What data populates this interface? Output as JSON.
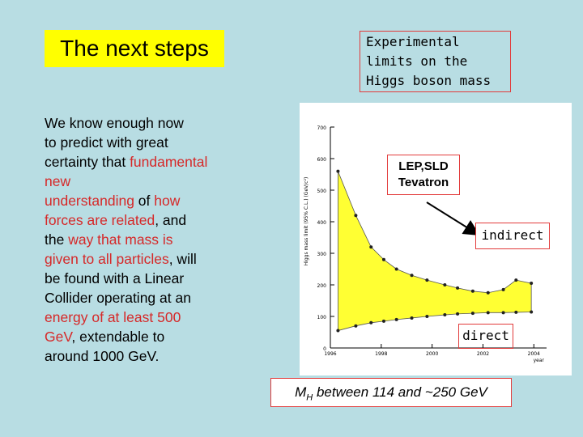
{
  "slide": {
    "title": "The next steps",
    "exp_title_lines": [
      "Experimental",
      "limits on the",
      "Higgs boson mass"
    ],
    "body_segments": [
      [
        {
          "t": "We know enough now",
          "red": false
        }
      ],
      [
        {
          "t": "to predict with great",
          "red": false
        }
      ],
      [
        {
          "t": "certainty that ",
          "red": false
        },
        {
          "t": "fundamental",
          "red": true
        }
      ],
      [
        {
          "t": "new",
          "red": true
        }
      ],
      [
        {
          "t": "understanding",
          "red": true
        },
        {
          "t": " of ",
          "red": false
        },
        {
          "t": "how",
          "red": true
        }
      ],
      [
        {
          "t": "forces are related",
          "red": true
        },
        {
          "t": ", and",
          "red": false
        }
      ],
      [
        {
          "t": "the ",
          "red": false
        },
        {
          "t": "way that mass is",
          "red": true
        }
      ],
      [
        {
          "t": "given to all particles",
          "red": true
        },
        {
          "t": ", will",
          "red": false
        }
      ],
      [
        {
          "t": "be found with a Linear",
          "red": false
        }
      ],
      [
        {
          "t": "Collider operating at an",
          "red": false
        }
      ],
      [
        {
          "t": "energy of at least 500",
          "red": true
        }
      ],
      [
        {
          "t": "GeV",
          "red": true
        },
        {
          "t": ", extendable to",
          "red": false
        }
      ],
      [
        {
          "t": "around 1000 GeV.",
          "red": false
        }
      ]
    ],
    "lep_label_lines": [
      "LEP,SLD",
      "Tevatron"
    ],
    "indirect_label": "indirect",
    "direct_label": "direct",
    "mh_prefix": "M",
    "mh_sub": "H",
    "mh_suffix": " between 114 and ~250 GeV",
    "colors": {
      "background": "#b8dde3",
      "title_bg": "#ffff00",
      "accent_red": "#d62828",
      "band_fill": "#ffff33"
    }
  },
  "chart_data": {
    "type": "area",
    "xlabel": "year",
    "ylabel": "Higgs mass limit (95% C.L.) (GeV/c²)",
    "x_ticks": [
      "1996",
      "1998",
      "2000",
      "2002",
      "2004"
    ],
    "y_ticks": [
      "0",
      "100",
      "200",
      "300",
      "400",
      "500",
      "600",
      "700"
    ],
    "xlim": [
      1996,
      2004.5
    ],
    "ylim": [
      0,
      700
    ],
    "series": [
      {
        "name": "indirect",
        "x": [
          1996.3,
          1997.0,
          1997.6,
          1998.1,
          1998.6,
          1999.2,
          1999.8,
          2000.5,
          2001.0,
          2001.6,
          2002.2,
          2002.8,
          2003.3,
          2003.9
        ],
        "values": [
          560,
          420,
          320,
          280,
          250,
          230,
          215,
          200,
          190,
          180,
          175,
          185,
          215,
          205
        ]
      },
      {
        "name": "direct",
        "x": [
          1996.3,
          1997.0,
          1997.6,
          1998.1,
          1998.6,
          1999.2,
          1999.8,
          2000.5,
          2001.0,
          2001.6,
          2002.2,
          2002.8,
          2003.3,
          2003.9
        ],
        "values": [
          55,
          70,
          80,
          85,
          90,
          95,
          100,
          105,
          108,
          110,
          112,
          112,
          113,
          114
        ]
      }
    ]
  }
}
